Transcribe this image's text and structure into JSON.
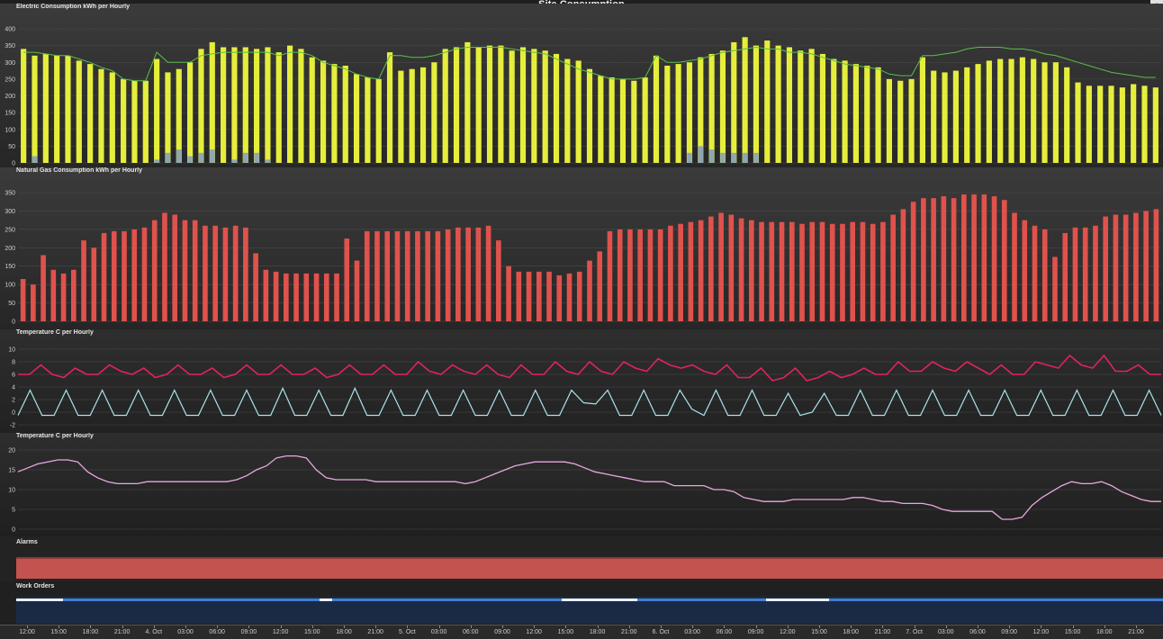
{
  "window": {
    "title": "Site Consumption"
  },
  "panels": {
    "electric": {
      "title": "Electric Consumption kWh per Hourly"
    },
    "gas": {
      "title": "Natural Gas Consumption kWh per Hourly"
    },
    "temp1": {
      "title": "Temperature C per Hourly"
    },
    "temp2": {
      "title": "Temperature C per Hourly"
    },
    "alarms": {
      "title": "Alarms"
    },
    "work_orders": {
      "title": "Work Orders"
    }
  },
  "colors": {
    "electric_bar": "#e6ee3c",
    "electric_secondary": "#8fa8b0",
    "electric_line": "#5bbf4a",
    "gas_bar": "#e0524c",
    "temp_upper": "#e0245a",
    "temp_lower": "#a8e4ea",
    "temp_outdoor": "#e8a8e0",
    "alarm_band": "#c2534e",
    "work_order_line": "#3e7dd6"
  },
  "time_axis": [
    "12:00",
    "15:00",
    "18:00",
    "21:00",
    "4. Oct",
    "03:00",
    "06:00",
    "09:00",
    "12:00",
    "15:00",
    "18:00",
    "21:00",
    "5. Oct",
    "03:00",
    "06:00",
    "09:00",
    "12:00",
    "15:00",
    "18:00",
    "21:00",
    "6. Oct",
    "03:00",
    "06:00",
    "09:00",
    "12:00",
    "15:00",
    "18:00",
    "21:00",
    "7. Oct",
    "03:00",
    "06:00",
    "09:00",
    "12:00",
    "15:00",
    "18:00",
    "21:00"
  ],
  "chart_data": [
    {
      "type": "bar",
      "title": "Electric Consumption kWh per Hourly",
      "ylim": [
        0,
        400
      ],
      "yticks": [
        0,
        50,
        100,
        150,
        200,
        250,
        300,
        350,
        400
      ],
      "grid": true,
      "series": [
        {
          "values": [
            340,
            320,
            325,
            320,
            320,
            305,
            295,
            280,
            270,
            250,
            245,
            245,
            310,
            270,
            280,
            300,
            340,
            360,
            345,
            345,
            345,
            340,
            345,
            330,
            350,
            340,
            315,
            305,
            295,
            290,
            265,
            255,
            250,
            330,
            275,
            280,
            285,
            300,
            340,
            345,
            360,
            345,
            350,
            350,
            335,
            345,
            340,
            335,
            325,
            310,
            305,
            280,
            260,
            255,
            250,
            245,
            255,
            320,
            290,
            295,
            300,
            315,
            325,
            335,
            360,
            375,
            350,
            365,
            350,
            345,
            335,
            340,
            325,
            310,
            305,
            295,
            290,
            285,
            250,
            245,
            250,
            315,
            275,
            270,
            275,
            285,
            295,
            305,
            310,
            310,
            315,
            310,
            300,
            300,
            285,
            240,
            230,
            230,
            230,
            225,
            235,
            230,
            225
          ]
        },
        {
          "values": [
            0,
            20,
            0,
            0,
            0,
            0,
            0,
            0,
            0,
            0,
            0,
            0,
            10,
            30,
            40,
            20,
            30,
            40,
            0,
            10,
            30,
            30,
            10,
            0,
            0,
            0,
            0,
            0,
            0,
            0,
            0,
            0,
            0,
            0,
            0,
            0,
            0,
            0,
            0,
            0,
            0,
            0,
            0,
            0,
            0,
            0,
            0,
            0,
            0,
            0,
            0,
            0,
            0,
            0,
            0,
            0,
            0,
            0,
            0,
            0,
            30,
            50,
            40,
            30,
            30,
            30,
            30,
            0,
            0,
            0,
            0,
            0,
            0,
            0,
            0,
            0,
            0,
            0,
            0,
            0,
            0,
            0,
            0,
            0,
            0,
            0,
            0,
            0,
            0,
            0,
            0,
            0,
            0,
            0,
            0,
            0,
            0,
            0,
            0,
            0,
            0,
            0,
            0
          ]
        },
        {
          "type": "line",
          "values": [
            330,
            330,
            325,
            320,
            320,
            310,
            300,
            285,
            275,
            250,
            245,
            245,
            330,
            300,
            300,
            300,
            320,
            325,
            330,
            330,
            330,
            330,
            330,
            320,
            330,
            330,
            320,
            300,
            290,
            280,
            265,
            255,
            250,
            320,
            320,
            315,
            315,
            320,
            330,
            340,
            345,
            345,
            345,
            345,
            340,
            335,
            330,
            325,
            310,
            295,
            280,
            270,
            260,
            250,
            250,
            250,
            255,
            320,
            300,
            300,
            305,
            310,
            320,
            330,
            335,
            340,
            345,
            340,
            340,
            330,
            330,
            325,
            315,
            305,
            295,
            290,
            285,
            280,
            265,
            260,
            260,
            320,
            320,
            325,
            330,
            340,
            345,
            345,
            345,
            340,
            340,
            335,
            325,
            320,
            310,
            300,
            290,
            280,
            270,
            265,
            260,
            255,
            255
          ]
        }
      ]
    },
    {
      "type": "bar",
      "title": "Natural Gas Consumption kWh per Hourly",
      "ylim": [
        0,
        350
      ],
      "yticks": [
        0,
        50,
        100,
        150,
        200,
        250,
        300,
        350
      ],
      "grid": true,
      "series": [
        {
          "values": [
            115,
            100,
            180,
            140,
            130,
            140,
            220,
            200,
            240,
            245,
            245,
            250,
            255,
            275,
            295,
            290,
            275,
            275,
            260,
            260,
            255,
            260,
            255,
            185,
            140,
            135,
            130,
            130,
            130,
            130,
            130,
            130,
            225,
            165,
            245,
            245,
            245,
            245,
            245,
            245,
            245,
            245,
            250,
            255,
            255,
            255,
            260,
            220,
            150,
            135,
            135,
            135,
            135,
            125,
            130,
            135,
            165,
            190,
            245,
            250,
            250,
            250,
            250,
            250,
            260,
            265,
            270,
            275,
            285,
            295,
            290,
            280,
            275,
            270,
            270,
            270,
            270,
            265,
            270,
            270,
            265,
            265,
            270,
            270,
            265,
            270,
            290,
            305,
            325,
            335,
            335,
            340,
            335,
            345,
            345,
            345,
            340,
            330,
            295,
            275,
            260,
            250,
            175,
            240,
            255,
            255,
            260,
            285,
            290,
            290,
            295,
            300,
            305
          ]
        }
      ]
    },
    {
      "type": "line",
      "title": "Temperature C per Hourly",
      "ylim": [
        -2,
        10
      ],
      "yticks": [
        -2,
        0,
        2,
        4,
        6,
        8,
        10
      ],
      "grid": true,
      "series": [
        {
          "values": [
            6,
            6,
            7.5,
            6,
            5.5,
            7,
            6,
            6,
            7.5,
            6.5,
            6,
            7,
            5.5,
            6,
            7.5,
            6,
            6,
            7,
            5.5,
            6,
            7.5,
            6,
            6,
            7.5,
            6,
            6,
            7,
            5.5,
            6,
            7.5,
            6,
            6,
            7.5,
            6,
            6,
            8,
            6.5,
            6,
            7.5,
            6.5,
            6,
            7.5,
            6,
            5.5,
            7.5,
            6,
            6,
            8,
            6.5,
            6,
            8,
            6.5,
            6,
            8,
            7,
            6.5,
            8.5,
            7.5,
            7,
            7.5,
            6.5,
            6,
            7.5,
            5.5,
            5.5,
            7,
            5,
            5.5,
            7,
            5,
            5.5,
            6.5,
            5.5,
            6,
            7,
            6,
            6,
            8,
            6.5,
            6.5,
            8,
            7,
            6.5,
            8,
            7,
            6,
            7.5,
            6,
            6,
            8,
            7.5,
            7,
            9,
            7.5,
            7,
            9,
            6.5,
            6.5,
            7.5,
            6,
            6
          ]
        },
        {
          "values": [
            -0.5,
            3.5,
            -0.5,
            -0.5,
            3.5,
            -0.5,
            -0.5,
            3.5,
            -0.5,
            -0.5,
            3.5,
            -0.5,
            -0.5,
            3.5,
            -0.5,
            -0.5,
            3.5,
            -0.5,
            -0.5,
            3.5,
            -0.5,
            -0.5,
            3.8,
            -0.5,
            -0.5,
            3.5,
            -0.5,
            -0.5,
            3.8,
            -0.5,
            -0.5,
            3.5,
            -0.5,
            -0.5,
            3.5,
            -0.5,
            -0.5,
            3.5,
            -0.5,
            -0.5,
            3.5,
            -0.5,
            -0.5,
            3.5,
            -0.5,
            -0.5,
            3.5,
            1.5,
            1.3,
            3.5,
            -0.5,
            -0.5,
            3.5,
            -0.5,
            -0.5,
            3.5,
            0.5,
            -0.5,
            3.5,
            -0.5,
            -0.5,
            3.5,
            -0.5,
            -0.5,
            3,
            -0.5,
            0,
            3,
            -0.5,
            -0.5,
            3.5,
            -0.5,
            -0.5,
            3.5,
            -0.5,
            -0.5,
            3.5,
            -0.5,
            -0.5,
            3.5,
            -0.5,
            -0.5,
            3.5,
            -0.5,
            -0.5,
            3.5,
            -0.5,
            -0.5,
            3.5,
            -0.5,
            -0.5,
            3.5,
            -0.5,
            -0.5,
            3.5,
            -0.5
          ]
        }
      ]
    },
    {
      "type": "line",
      "title": "Temperature C per Hourly",
      "ylim": [
        0,
        20
      ],
      "yticks": [
        0,
        5,
        10,
        15,
        20
      ],
      "grid": true,
      "series": [
        {
          "values": [
            14.5,
            15.5,
            16.5,
            17,
            17.5,
            17.5,
            17,
            14.5,
            13,
            12,
            11.5,
            11.5,
            11.5,
            12,
            12,
            12,
            12,
            12,
            12,
            12,
            12,
            12,
            12.5,
            13.5,
            15,
            16,
            18,
            18.5,
            18.5,
            18,
            15,
            13,
            12.5,
            12.5,
            12.5,
            12.5,
            12,
            12,
            12,
            12,
            12,
            12,
            12,
            12,
            12,
            11.5,
            12,
            13,
            14,
            15,
            16,
            16.5,
            17,
            17,
            17,
            17,
            16.5,
            15.5,
            14.5,
            14,
            13.5,
            13,
            12.5,
            12,
            12,
            12,
            11,
            11,
            11,
            11,
            10,
            10,
            9.5,
            8,
            7.5,
            7,
            7,
            7,
            7.5,
            7.5,
            7.5,
            7.5,
            7.5,
            7.5,
            8,
            8,
            7.5,
            7,
            7,
            6.5,
            6.5,
            6.5,
            6,
            5,
            4.5,
            4.5,
            4.5,
            4.5,
            4.5,
            2.5,
            2.5,
            3,
            6,
            8,
            9.5,
            11,
            12,
            11.5,
            11.5,
            12,
            11,
            9.5,
            8.5,
            7.5,
            7,
            7
          ]
        }
      ]
    }
  ]
}
